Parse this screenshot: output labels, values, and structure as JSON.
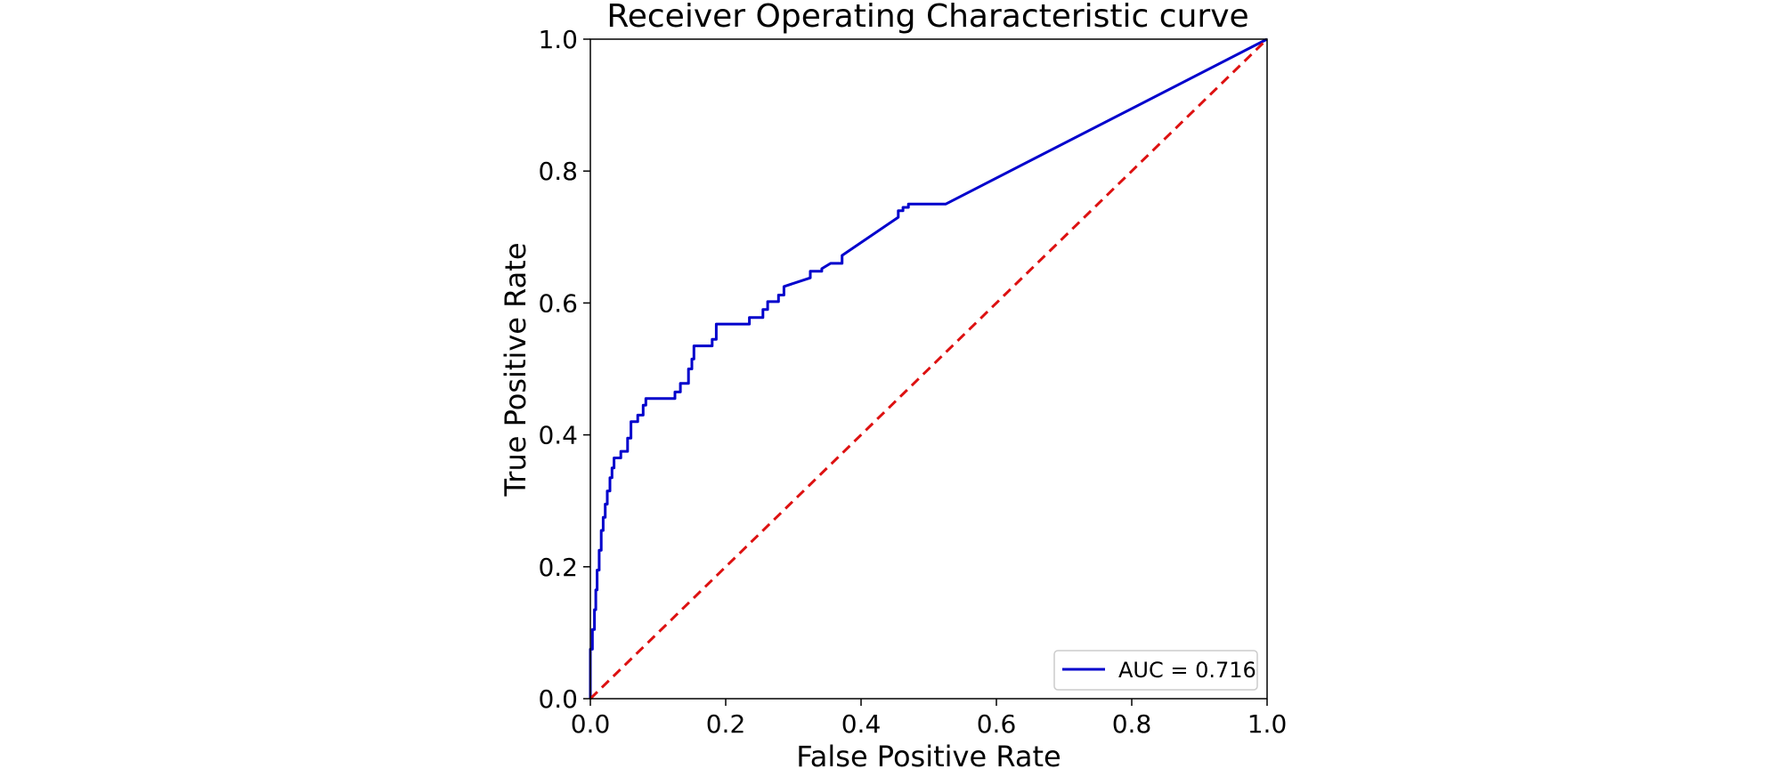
{
  "chart_data": {
    "type": "line",
    "title": "Receiver Operating Characteristic curve",
    "xlabel": "False Positive Rate",
    "ylabel": "True Positive Rate",
    "xlim": [
      0.0,
      1.0
    ],
    "ylim": [
      0.0,
      1.0
    ],
    "x_ticks": [
      "0.0",
      "0.2",
      "0.4",
      "0.6",
      "0.8",
      "1.0"
    ],
    "y_ticks": [
      "0.0",
      "0.2",
      "0.4",
      "0.6",
      "0.8",
      "1.0"
    ],
    "grid": false,
    "legend_position": "lower-right",
    "series": [
      {
        "name": "AUC = 0.716",
        "color": "#0000cc",
        "style": "solid",
        "points": [
          [
            0.0,
            0.0
          ],
          [
            0.0,
            0.075
          ],
          [
            0.003,
            0.075
          ],
          [
            0.003,
            0.105
          ],
          [
            0.006,
            0.105
          ],
          [
            0.006,
            0.135
          ],
          [
            0.008,
            0.135
          ],
          [
            0.008,
            0.165
          ],
          [
            0.01,
            0.165
          ],
          [
            0.01,
            0.195
          ],
          [
            0.013,
            0.195
          ],
          [
            0.013,
            0.225
          ],
          [
            0.016,
            0.225
          ],
          [
            0.016,
            0.255
          ],
          [
            0.019,
            0.255
          ],
          [
            0.019,
            0.275
          ],
          [
            0.022,
            0.275
          ],
          [
            0.022,
            0.295
          ],
          [
            0.025,
            0.295
          ],
          [
            0.025,
            0.315
          ],
          [
            0.029,
            0.315
          ],
          [
            0.029,
            0.335
          ],
          [
            0.032,
            0.335
          ],
          [
            0.032,
            0.35
          ],
          [
            0.035,
            0.35
          ],
          [
            0.035,
            0.365
          ],
          [
            0.045,
            0.365
          ],
          [
            0.045,
            0.375
          ],
          [
            0.055,
            0.375
          ],
          [
            0.055,
            0.395
          ],
          [
            0.06,
            0.395
          ],
          [
            0.06,
            0.42
          ],
          [
            0.07,
            0.42
          ],
          [
            0.07,
            0.43
          ],
          [
            0.078,
            0.43
          ],
          [
            0.078,
            0.445
          ],
          [
            0.082,
            0.445
          ],
          [
            0.082,
            0.455
          ],
          [
            0.125,
            0.455
          ],
          [
            0.125,
            0.465
          ],
          [
            0.133,
            0.465
          ],
          [
            0.133,
            0.478
          ],
          [
            0.145,
            0.478
          ],
          [
            0.145,
            0.5
          ],
          [
            0.15,
            0.5
          ],
          [
            0.15,
            0.515
          ],
          [
            0.153,
            0.515
          ],
          [
            0.153,
            0.535
          ],
          [
            0.18,
            0.535
          ],
          [
            0.18,
            0.545
          ],
          [
            0.186,
            0.545
          ],
          [
            0.186,
            0.568
          ],
          [
            0.235,
            0.568
          ],
          [
            0.235,
            0.578
          ],
          [
            0.255,
            0.578
          ],
          [
            0.255,
            0.59
          ],
          [
            0.262,
            0.59
          ],
          [
            0.262,
            0.602
          ],
          [
            0.278,
            0.602
          ],
          [
            0.278,
            0.612
          ],
          [
            0.286,
            0.612
          ],
          [
            0.286,
            0.625
          ],
          [
            0.325,
            0.638
          ],
          [
            0.325,
            0.648
          ],
          [
            0.342,
            0.648
          ],
          [
            0.342,
            0.652
          ],
          [
            0.355,
            0.66
          ],
          [
            0.372,
            0.66
          ],
          [
            0.372,
            0.672
          ],
          [
            0.455,
            0.73
          ],
          [
            0.455,
            0.74
          ],
          [
            0.462,
            0.74
          ],
          [
            0.462,
            0.745
          ],
          [
            0.47,
            0.745
          ],
          [
            0.47,
            0.75
          ],
          [
            0.525,
            0.75
          ],
          [
            1.0,
            1.0
          ]
        ]
      },
      {
        "name": "",
        "color": "#dd1111",
        "style": "dashed",
        "points": [
          [
            0.0,
            0.0
          ],
          [
            1.0,
            1.0
          ]
        ]
      }
    ],
    "legend": {
      "entries": [
        {
          "label": "AUC = 0.716",
          "color": "#0000cc",
          "style": "solid"
        }
      ]
    }
  }
}
